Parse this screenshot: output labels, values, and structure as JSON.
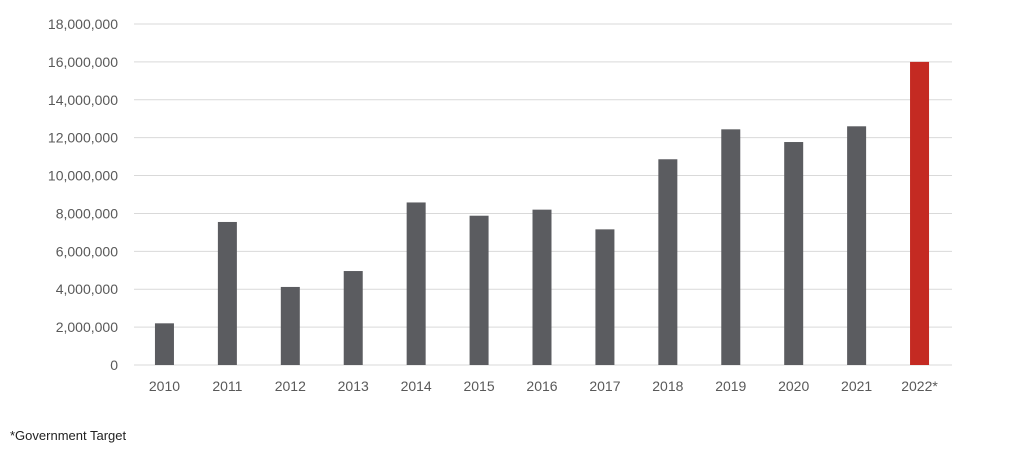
{
  "chart_data": {
    "type": "bar",
    "title": "",
    "xlabel": "",
    "ylabel": "",
    "categories": [
      "2010",
      "2011",
      "2012",
      "2013",
      "2014",
      "2015",
      "2016",
      "2017",
      "2018",
      "2019",
      "2020",
      "2021",
      "2022*"
    ],
    "values": [
      2200000,
      7550000,
      4120000,
      4960000,
      8580000,
      7880000,
      8200000,
      7160000,
      10860000,
      12440000,
      11770000,
      12600000,
      16000000
    ],
    "ylim": [
      0,
      18000000
    ],
    "yticks": [
      "0",
      "2,000,000",
      "4,000,000",
      "6,000,000",
      "8,000,000",
      "10,000,000",
      "12,000,000",
      "14,000,000",
      "16,000,000",
      "18,000,000"
    ],
    "grid": true,
    "legend": "none",
    "colors": {
      "default": "#5b5c60",
      "highlight": "#c42a22",
      "grid": "#d9d9d9"
    },
    "highlight_category": "2022*"
  },
  "footnote": "*Government Target"
}
